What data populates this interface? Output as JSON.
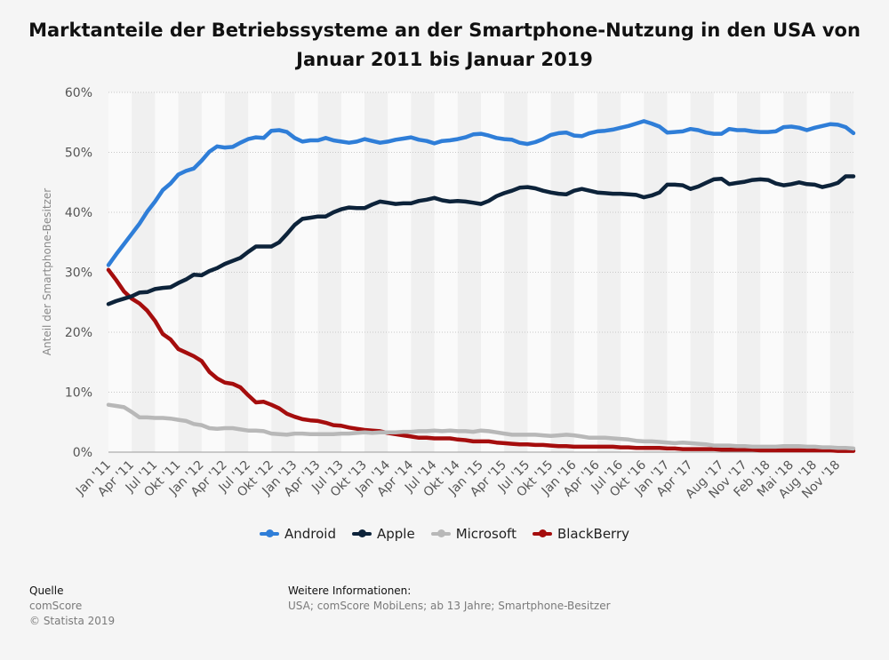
{
  "title": {
    "line1": "Marktanteile der Betriebssysteme an der Smartphone-Nutzung in den USA von",
    "line2": "Januar 2011 bis Januar 2019"
  },
  "chart_data": {
    "type": "line",
    "title": "Marktanteile der Betriebssysteme an der Smartphone-Nutzung in den USA von Januar 2011 bis Januar 2019",
    "ylabel": "Anteil der Smartphone-Besitzer",
    "xlabel": "",
    "ylim": [
      0,
      60
    ],
    "yticks": [
      "0%",
      "10%",
      "20%",
      "30%",
      "40%",
      "50%",
      "60%"
    ],
    "grid": true,
    "legend_position": "bottom",
    "x": [
      "Jan '11",
      "Feb '11",
      "Mär '11",
      "Apr '11",
      "Mai '11",
      "Jun '11",
      "Jul '11",
      "Aug '11",
      "Sep '11",
      "Okt '11",
      "Nov '11",
      "Dez '11",
      "Jan '12",
      "Feb '12",
      "Mär '12",
      "Apr '12",
      "Mai '12",
      "Jun '12",
      "Jul '12",
      "Aug '12",
      "Sep '12",
      "Okt '12",
      "Nov '12",
      "Dez '12",
      "Jan '13",
      "Feb '13",
      "Mär '13",
      "Apr '13",
      "Mai '13",
      "Jun '13",
      "Jul '13",
      "Aug '13",
      "Sep '13",
      "Okt '13",
      "Nov '13",
      "Dez '13",
      "Jan '14",
      "Feb '14",
      "Mär '14",
      "Apr '14",
      "Mai '14",
      "Jun '14",
      "Jul '14",
      "Aug '14",
      "Sep '14",
      "Okt '14",
      "Nov '14",
      "Dez '14",
      "Jan '15",
      "Feb '15",
      "Mär '15",
      "Apr '15",
      "Mai '15",
      "Jun '15",
      "Jul '15",
      "Aug '15",
      "Sep '15",
      "Okt '15",
      "Nov '15",
      "Dez '15",
      "Jan '16",
      "Feb '16",
      "Mär '16",
      "Apr '16",
      "Mai '16",
      "Jun '16",
      "Jul '16",
      "Aug '16",
      "Sep '16",
      "Okt '16",
      "Nov '16",
      "Dez '16",
      "Jan '17",
      "Feb '17",
      "Mär '17",
      "Apr '17",
      "Mai '17",
      "Jun '17",
      "Jul '17",
      "Aug '17",
      "Sep '17",
      "Okt '17",
      "Nov '17",
      "Dez '17",
      "Jan '18",
      "Feb '18",
      "Mär '18",
      "Apr '18",
      "Mai '18",
      "Jun '18",
      "Jul '18",
      "Aug '18",
      "Sep '18",
      "Okt '18",
      "Nov '18",
      "Dez '18",
      "Jan '19"
    ],
    "x_tick_labels": [
      "Jan '11",
      "Apr '11",
      "Jul '11",
      "Okt '11",
      "Jan '12",
      "Apr '12",
      "Jul '12",
      "Okt '12",
      "Jan '13",
      "Apr '13",
      "Jul '13",
      "Okt '13",
      "Jan '14",
      "Apr '14",
      "Jul '14",
      "Okt '14",
      "Jan '15",
      "Apr '15",
      "Jul '15",
      "Okt '15",
      "Jan '16",
      "Apr '16",
      "Jul '16",
      "Okt '16",
      "Jan '17",
      "Apr '17",
      "Aug '17",
      "Nov '17",
      "Feb '18",
      "Mai '18",
      "Aug '18",
      "Nov '18"
    ],
    "series": [
      {
        "name": "Android",
        "color": "#2f7ed8",
        "values": [
          31.2,
          33.0,
          34.7,
          36.4,
          38.1,
          40.1,
          41.8,
          43.7,
          44.8,
          46.3,
          46.9,
          47.3,
          48.6,
          50.1,
          51.0,
          50.8,
          50.9,
          51.6,
          52.2,
          52.5,
          52.4,
          53.6,
          53.7,
          53.4,
          52.4,
          51.8,
          52.0,
          52.0,
          52.4,
          52.0,
          51.8,
          51.6,
          51.8,
          52.2,
          51.9,
          51.6,
          51.8,
          52.1,
          52.3,
          52.5,
          52.1,
          51.9,
          51.5,
          51.9,
          52.0,
          52.2,
          52.5,
          53.0,
          53.1,
          52.8,
          52.4,
          52.2,
          52.1,
          51.6,
          51.4,
          51.7,
          52.2,
          52.9,
          53.2,
          53.3,
          52.8,
          52.7,
          53.2,
          53.5,
          53.6,
          53.8,
          54.1,
          54.4,
          54.8,
          55.2,
          54.8,
          54.3,
          53.3,
          53.4,
          53.5,
          53.9,
          53.7,
          53.3,
          53.1,
          53.1,
          53.9,
          53.7,
          53.7,
          53.5,
          53.4,
          53.4,
          53.5,
          54.2,
          54.3,
          54.1,
          53.7,
          54.1,
          54.4,
          54.7,
          54.6,
          54.2,
          53.2
        ]
      },
      {
        "name": "Apple",
        "color": "#0d233a",
        "values": [
          24.7,
          25.2,
          25.6,
          26.0,
          26.6,
          26.7,
          27.2,
          27.4,
          27.5,
          28.2,
          28.8,
          29.6,
          29.5,
          30.2,
          30.7,
          31.4,
          31.9,
          32.4,
          33.4,
          34.3,
          34.3,
          34.3,
          35.0,
          36.4,
          37.9,
          38.9,
          39.1,
          39.3,
          39.3,
          40.0,
          40.5,
          40.8,
          40.7,
          40.7,
          41.3,
          41.8,
          41.6,
          41.4,
          41.5,
          41.5,
          41.9,
          42.1,
          42.4,
          42.0,
          41.8,
          41.9,
          41.8,
          41.6,
          41.4,
          41.9,
          42.7,
          43.2,
          43.6,
          44.1,
          44.2,
          44.0,
          43.6,
          43.3,
          43.1,
          43.0,
          43.6,
          43.9,
          43.6,
          43.3,
          43.2,
          43.1,
          43.1,
          43.0,
          42.9,
          42.5,
          42.8,
          43.3,
          44.6,
          44.6,
          44.5,
          43.9,
          44.3,
          44.9,
          45.5,
          45.6,
          44.7,
          44.9,
          45.1,
          45.4,
          45.5,
          45.4,
          44.8,
          44.5,
          44.7,
          45.0,
          44.7,
          44.6,
          44.2,
          44.5,
          44.9,
          46.0,
          46.0
        ]
      },
      {
        "name": "Microsoft",
        "color": "#b8b8b8",
        "values": [
          7.9,
          7.7,
          7.5,
          6.7,
          5.8,
          5.8,
          5.7,
          5.7,
          5.6,
          5.4,
          5.2,
          4.7,
          4.5,
          4.0,
          3.9,
          4.0,
          4.0,
          3.8,
          3.6,
          3.6,
          3.5,
          3.1,
          3.0,
          2.9,
          3.1,
          3.1,
          3.0,
          3.0,
          3.0,
          3.0,
          3.1,
          3.1,
          3.2,
          3.3,
          3.2,
          3.3,
          3.3,
          3.3,
          3.4,
          3.4,
          3.5,
          3.5,
          3.6,
          3.5,
          3.6,
          3.5,
          3.5,
          3.4,
          3.6,
          3.5,
          3.3,
          3.1,
          2.9,
          2.9,
          2.9,
          2.9,
          2.8,
          2.7,
          2.8,
          2.9,
          2.8,
          2.6,
          2.4,
          2.4,
          2.4,
          2.3,
          2.2,
          2.1,
          1.9,
          1.8,
          1.8,
          1.7,
          1.6,
          1.5,
          1.6,
          1.5,
          1.4,
          1.3,
          1.1,
          1.1,
          1.1,
          1.0,
          1.0,
          0.9,
          0.9,
          0.9,
          0.9,
          1.0,
          1.0,
          1.0,
          0.9,
          0.9,
          0.8,
          0.8,
          0.7,
          0.7,
          0.6
        ]
      },
      {
        "name": "BlackBerry",
        "color": "#a50d0d",
        "values": [
          30.4,
          28.7,
          26.8,
          25.6,
          24.8,
          23.6,
          21.9,
          19.7,
          18.8,
          17.2,
          16.6,
          16.0,
          15.2,
          13.4,
          12.3,
          11.6,
          11.4,
          10.8,
          9.5,
          8.3,
          8.4,
          7.9,
          7.3,
          6.4,
          5.9,
          5.5,
          5.3,
          5.2,
          4.9,
          4.5,
          4.4,
          4.1,
          3.9,
          3.7,
          3.6,
          3.5,
          3.2,
          3.0,
          2.8,
          2.6,
          2.4,
          2.4,
          2.3,
          2.3,
          2.3,
          2.1,
          2.0,
          1.8,
          1.8,
          1.8,
          1.6,
          1.5,
          1.4,
          1.3,
          1.3,
          1.2,
          1.2,
          1.1,
          1.0,
          1.0,
          0.9,
          0.9,
          0.9,
          0.9,
          0.9,
          0.9,
          0.8,
          0.8,
          0.7,
          0.7,
          0.7,
          0.7,
          0.6,
          0.6,
          0.5,
          0.5,
          0.5,
          0.5,
          0.5,
          0.4,
          0.4,
          0.4,
          0.4,
          0.4,
          0.3,
          0.3,
          0.3,
          0.3,
          0.3,
          0.3,
          0.3,
          0.3,
          0.3,
          0.3,
          0.2,
          0.2,
          0.2
        ]
      }
    ]
  },
  "legend": [
    {
      "label": "Android",
      "color": "#2f7ed8"
    },
    {
      "label": "Apple",
      "color": "#0d233a"
    },
    {
      "label": "Microsoft",
      "color": "#b8b8b8"
    },
    {
      "label": "BlackBerry",
      "color": "#a50d0d"
    }
  ],
  "footer": {
    "source_heading": "Quelle",
    "source_line1": "comScore",
    "source_line2": "© Statista 2019",
    "info_heading": "Weitere Informationen:",
    "info_text": "USA; comScore MobiLens; ab 13 Jahre; Smartphone-Besitzer"
  }
}
